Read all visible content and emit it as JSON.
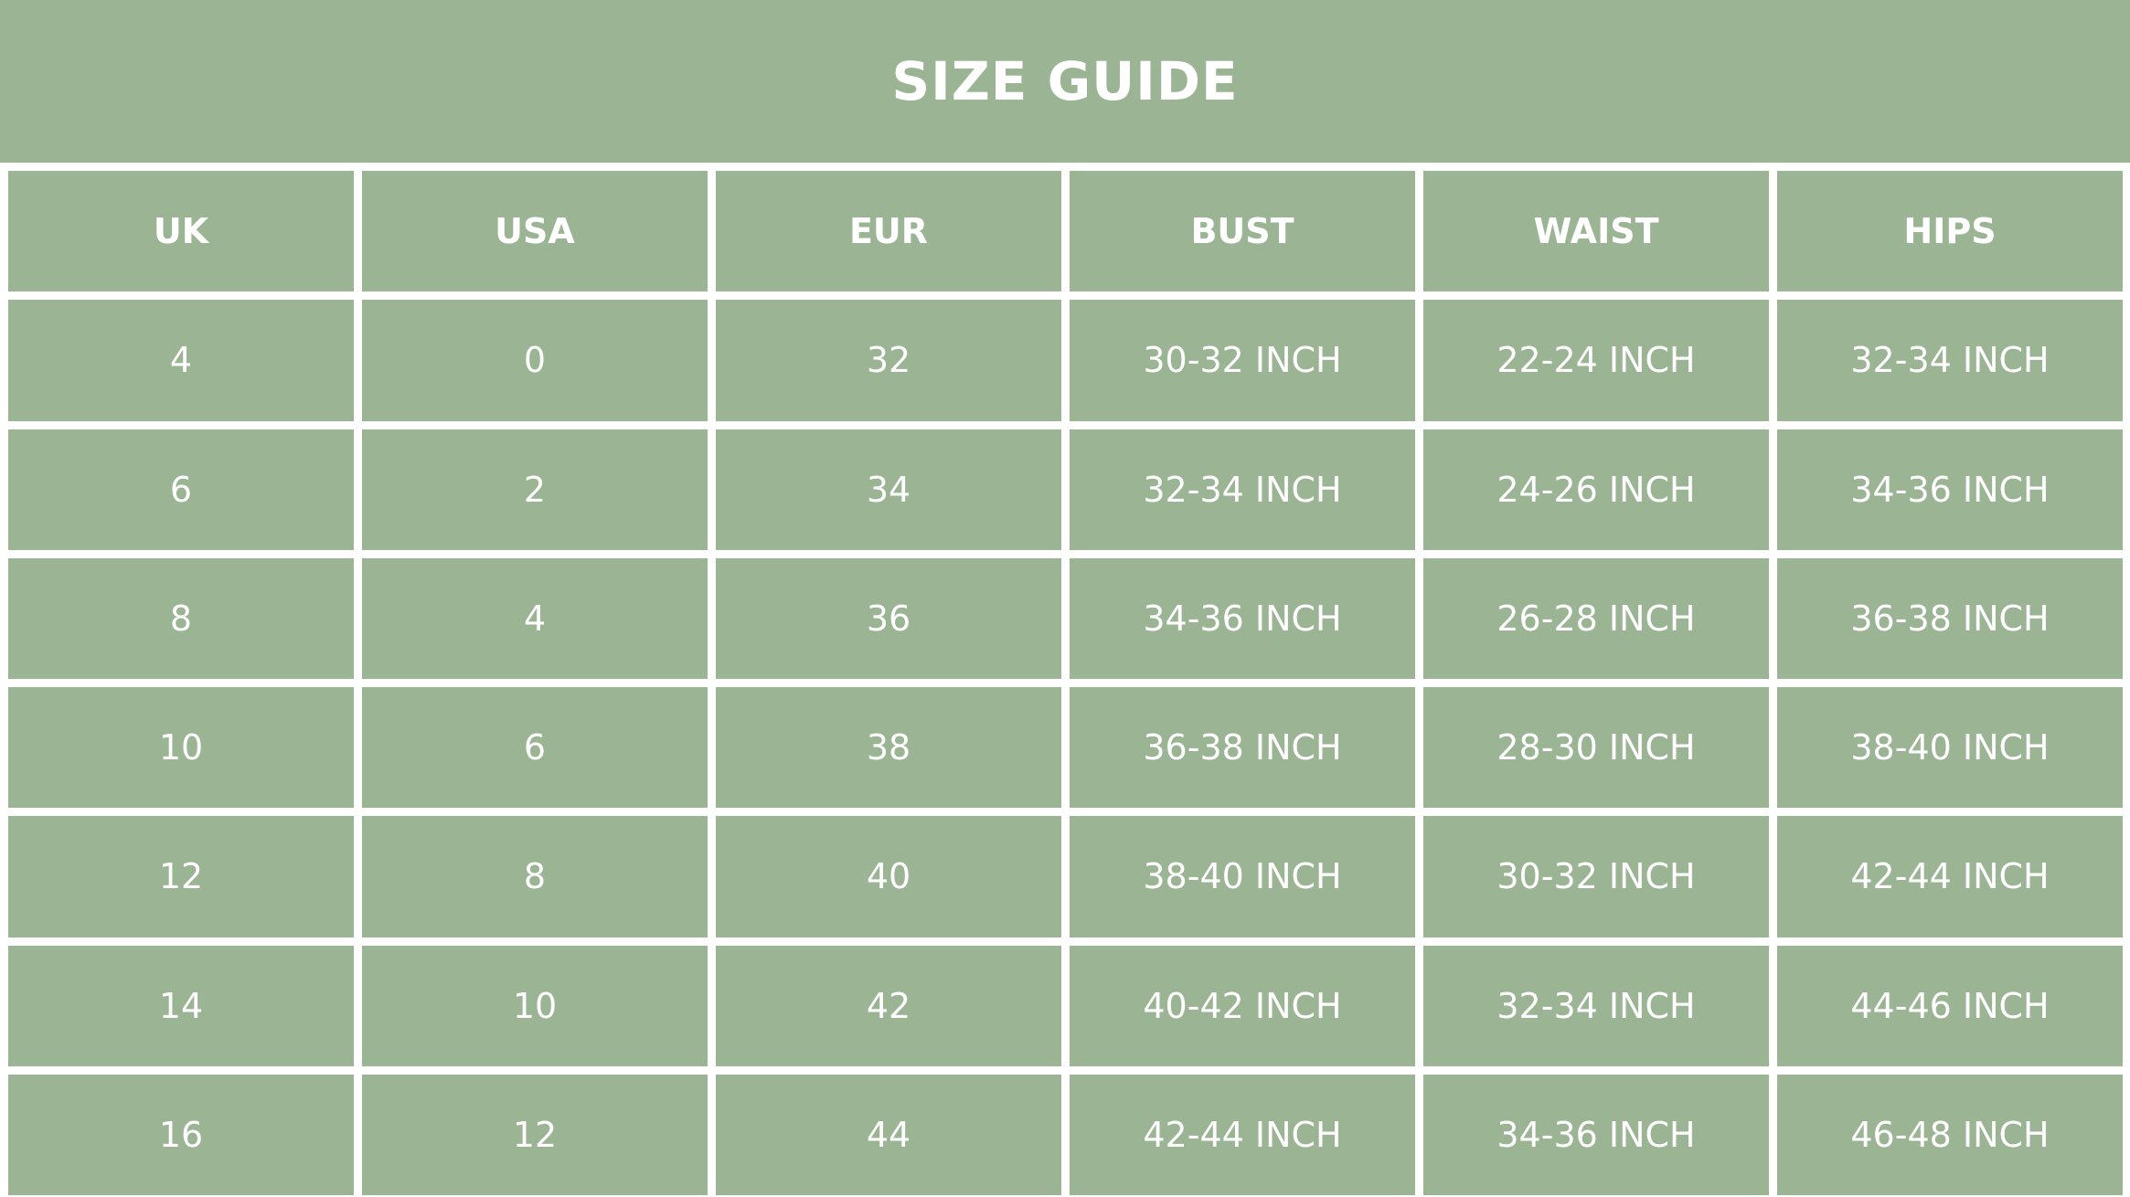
{
  "title": "SIZE GUIDE",
  "colors": {
    "panel": "#9bb494",
    "text": "#ffffff",
    "gridlines": "#ffffff"
  },
  "table": {
    "headers": [
      "UK",
      "USA",
      "EUR",
      "BUST",
      "WAIST",
      "HIPS"
    ],
    "rows": [
      [
        "4",
        "0",
        "32",
        "30-32 INCH",
        "22-24 INCH",
        "32-34 INCH"
      ],
      [
        "6",
        "2",
        "34",
        "32-34 INCH",
        "24-26 INCH",
        "34-36 INCH"
      ],
      [
        "8",
        "4",
        "36",
        "34-36 INCH",
        "26-28 INCH",
        "36-38 INCH"
      ],
      [
        "10",
        "6",
        "38",
        "36-38 INCH",
        "28-30 INCH",
        "38-40 INCH"
      ],
      [
        "12",
        "8",
        "40",
        "38-40 INCH",
        "30-32 INCH",
        "42-44 INCH"
      ],
      [
        "14",
        "10",
        "42",
        "40-42 INCH",
        "32-34 INCH",
        "44-46 INCH"
      ],
      [
        "16",
        "12",
        "44",
        "42-44 INCH",
        "34-36 INCH",
        "46-48 INCH"
      ]
    ]
  }
}
